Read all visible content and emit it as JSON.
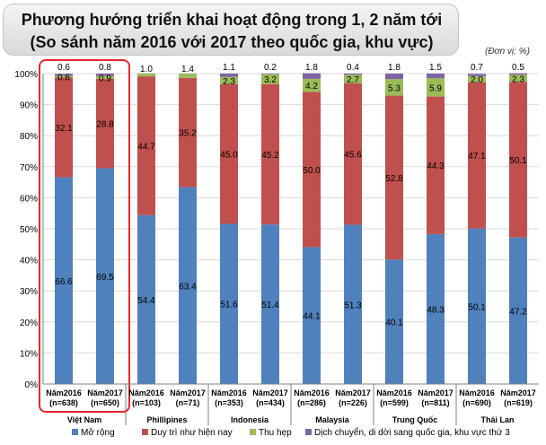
{
  "header": {
    "title_line1": "Phương hướng triển khai hoạt động trong 1, 2 năm tới",
    "title_line2": "(So sánh năm 2016 với 2017 theo quốc gia, khu vực)",
    "unit": "(Đơn vị: %)"
  },
  "highlight_color": "#e8262c",
  "chart_data": {
    "type": "bar",
    "stacked": true,
    "percent": true,
    "ylim": [
      0,
      100
    ],
    "yticks": [
      "0%",
      "10%",
      "20%",
      "30%",
      "40%",
      "50%",
      "60%",
      "70%",
      "80%",
      "90%",
      "100%"
    ],
    "legend_position": "bottom",
    "groups": [
      {
        "name": "Việt Nam",
        "highlighted": true,
        "bars": [
          {
            "label": "Năm2016",
            "n": "(n=638)",
            "values": [
              66.6,
              32.1,
              0.6,
              0.6
            ]
          },
          {
            "label": "Năm2017",
            "n": "(n=650)",
            "values": [
              69.5,
              28.8,
              0.9,
              0.8
            ]
          }
        ]
      },
      {
        "name": "Phillipines",
        "bars": [
          {
            "label": "Năm2016",
            "n": "(n=103)",
            "values": [
              54.4,
              44.7,
              1.0,
              0
            ]
          },
          {
            "label": "Năm2017",
            "n": "(n=71)",
            "values": [
              63.4,
              35.2,
              1.4,
              0
            ]
          }
        ]
      },
      {
        "name": "Indonesia",
        "bars": [
          {
            "label": "Năm2016",
            "n": "(n=353)",
            "values": [
              51.6,
              45.0,
              2.3,
              1.1
            ]
          },
          {
            "label": "Năm2017",
            "n": "(n=434)",
            "values": [
              51.4,
              45.2,
              3.2,
              0.2
            ]
          }
        ]
      },
      {
        "name": "Malaysia",
        "bars": [
          {
            "label": "Năm2016",
            "n": "(n=286)",
            "values": [
              44.1,
              50.0,
              4.2,
              1.8
            ]
          },
          {
            "label": "Năm2017",
            "n": "(n=226)",
            "values": [
              51.3,
              45.6,
              2.7,
              0.4
            ]
          }
        ]
      },
      {
        "name": "Trung Quốc",
        "bars": [
          {
            "label": "Năm2016",
            "n": "(n=599)",
            "values": [
              40.1,
              52.8,
              5.3,
              1.8
            ]
          },
          {
            "label": "Năm2017",
            "n": "(n=811)",
            "values": [
              48.3,
              44.3,
              5.9,
              1.5
            ]
          }
        ]
      },
      {
        "name": "Thái Lan",
        "bars": [
          {
            "label": "Năm2016",
            "n": "(n=690)",
            "values": [
              50.1,
              47.1,
              2.0,
              0.7
            ]
          },
          {
            "label": "Năm2017",
            "n": "(n=619)",
            "values": [
              47.2,
              50.1,
              2.3,
              0.5
            ]
          }
        ]
      }
    ],
    "series": [
      {
        "name": "Mở rộng",
        "color": "#4f81bd"
      },
      {
        "name": "Duy trì như hiện nay",
        "color": "#c0504d"
      },
      {
        "name": "Thu hẹp",
        "color": "#9bbb59"
      },
      {
        "name": "Dịch chuyển, di dời sang quốc gia, khu vực thứ 3",
        "color": "#8064a2"
      }
    ]
  }
}
